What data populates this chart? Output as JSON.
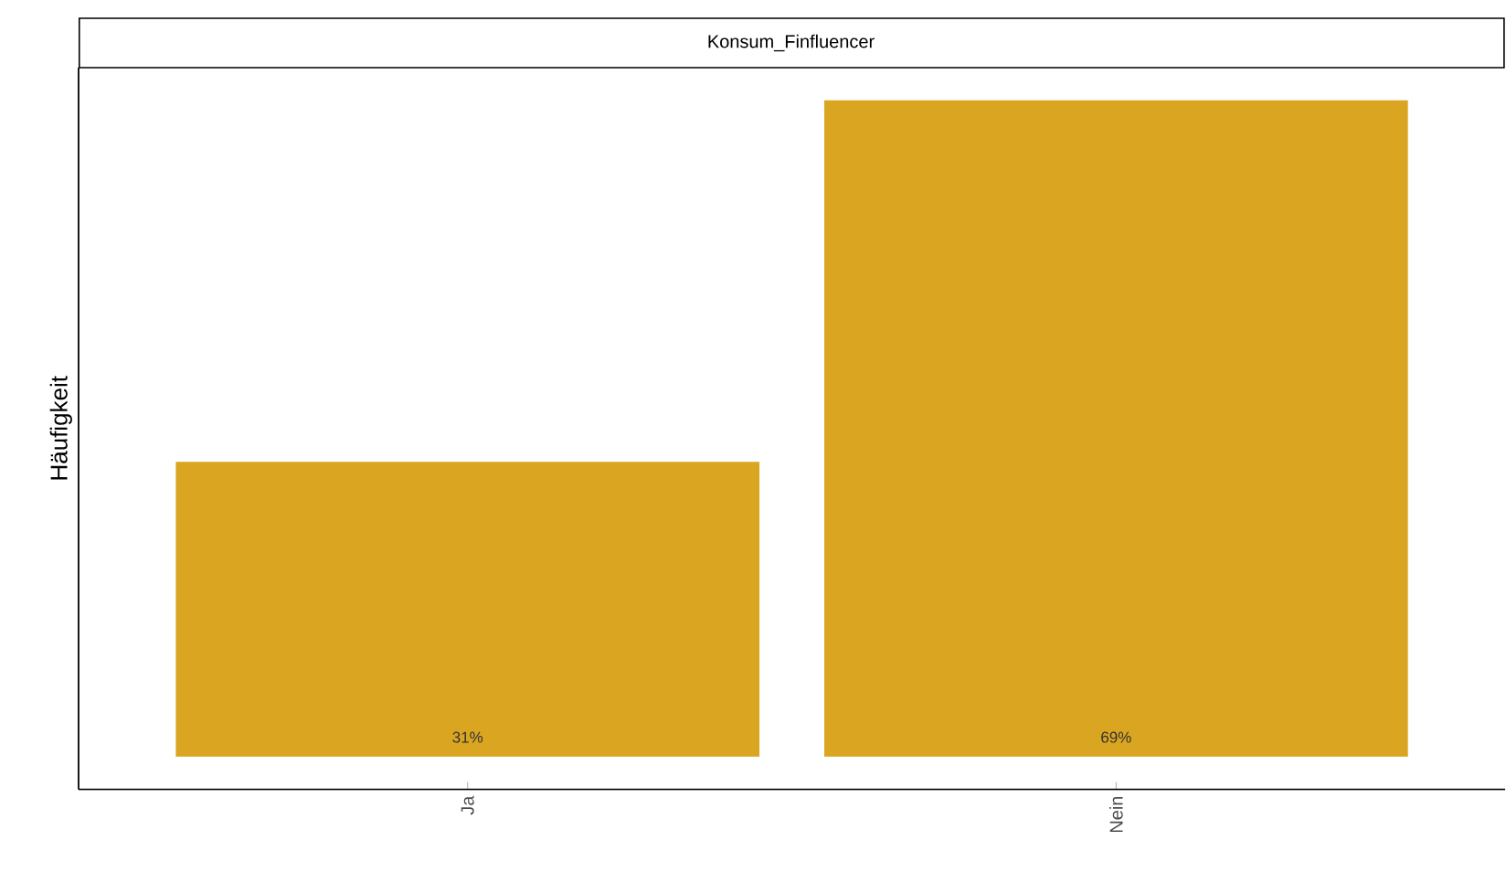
{
  "chart_data": {
    "type": "bar",
    "title": "Konsum_Finfluencer",
    "ylabel": "Häufigkeit",
    "categories": [
      "Ja",
      "Nein"
    ],
    "values": [
      31,
      69
    ],
    "value_labels": [
      "31%",
      "69%"
    ],
    "color": "#daa520"
  }
}
